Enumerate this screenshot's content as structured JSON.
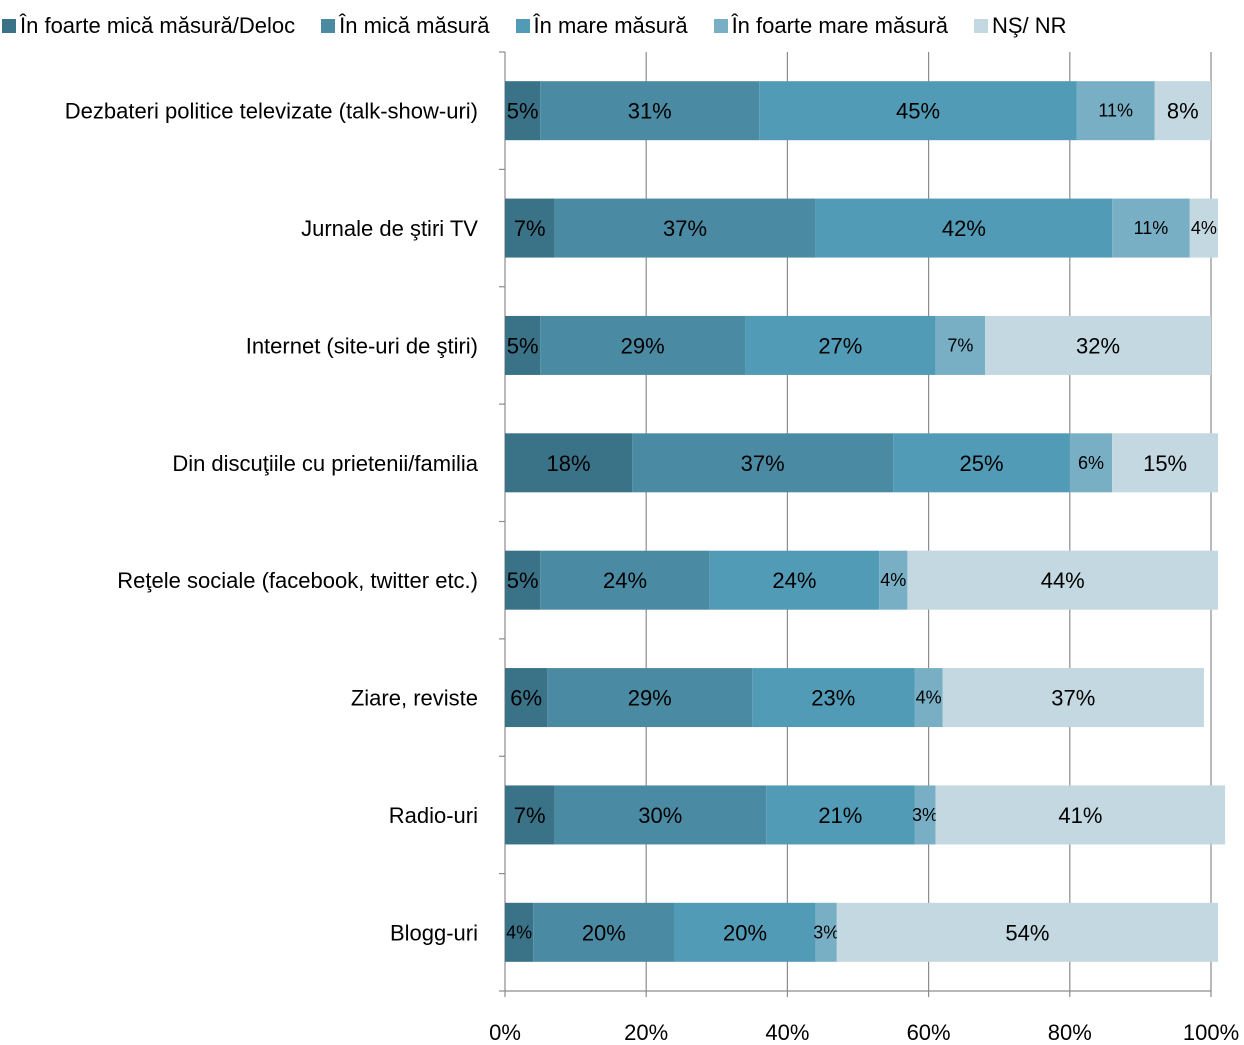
{
  "chart_data": {
    "type": "bar",
    "orientation": "horizontal",
    "stacked": true,
    "title": "",
    "xlabel": "",
    "ylabel": "",
    "xlim": [
      0,
      100
    ],
    "x_ticks": [
      "0%",
      "20%",
      "40%",
      "60%",
      "80%",
      "100%"
    ],
    "grid": "vertical",
    "legend_position": "top",
    "categories": [
      "Dezbateri politice televizate (talk-show-uri)",
      "Jurnale de ştiri TV",
      "Internet (site-uri de ştiri)",
      "Din discuţiile cu prietenii/familia",
      "Reţele sociale (facebook, twitter etc.)",
      "Ziare, reviste",
      "Radio-uri",
      "Blogg-uri"
    ],
    "series": [
      {
        "name": "În foarte mică măsură/Deloc",
        "color": "#3a7288",
        "values": [
          5,
          7,
          5,
          18,
          5,
          6,
          7,
          4
        ]
      },
      {
        "name": "În mică măsură",
        "color": "#4a8aa3",
        "values": [
          31,
          37,
          29,
          37,
          24,
          29,
          30,
          20
        ]
      },
      {
        "name": "În mare măsură",
        "color": "#519bb6",
        "values": [
          45,
          42,
          27,
          25,
          24,
          23,
          21,
          20
        ]
      },
      {
        "name": "În foarte mare măsură",
        "color": "#78afc5",
        "values": [
          11,
          11,
          7,
          6,
          4,
          4,
          3,
          3
        ]
      },
      {
        "name": "NŞ/ NR",
        "color": "#c3d8e1",
        "values": [
          8,
          4,
          32,
          15,
          44,
          37,
          41,
          54
        ]
      }
    ]
  }
}
